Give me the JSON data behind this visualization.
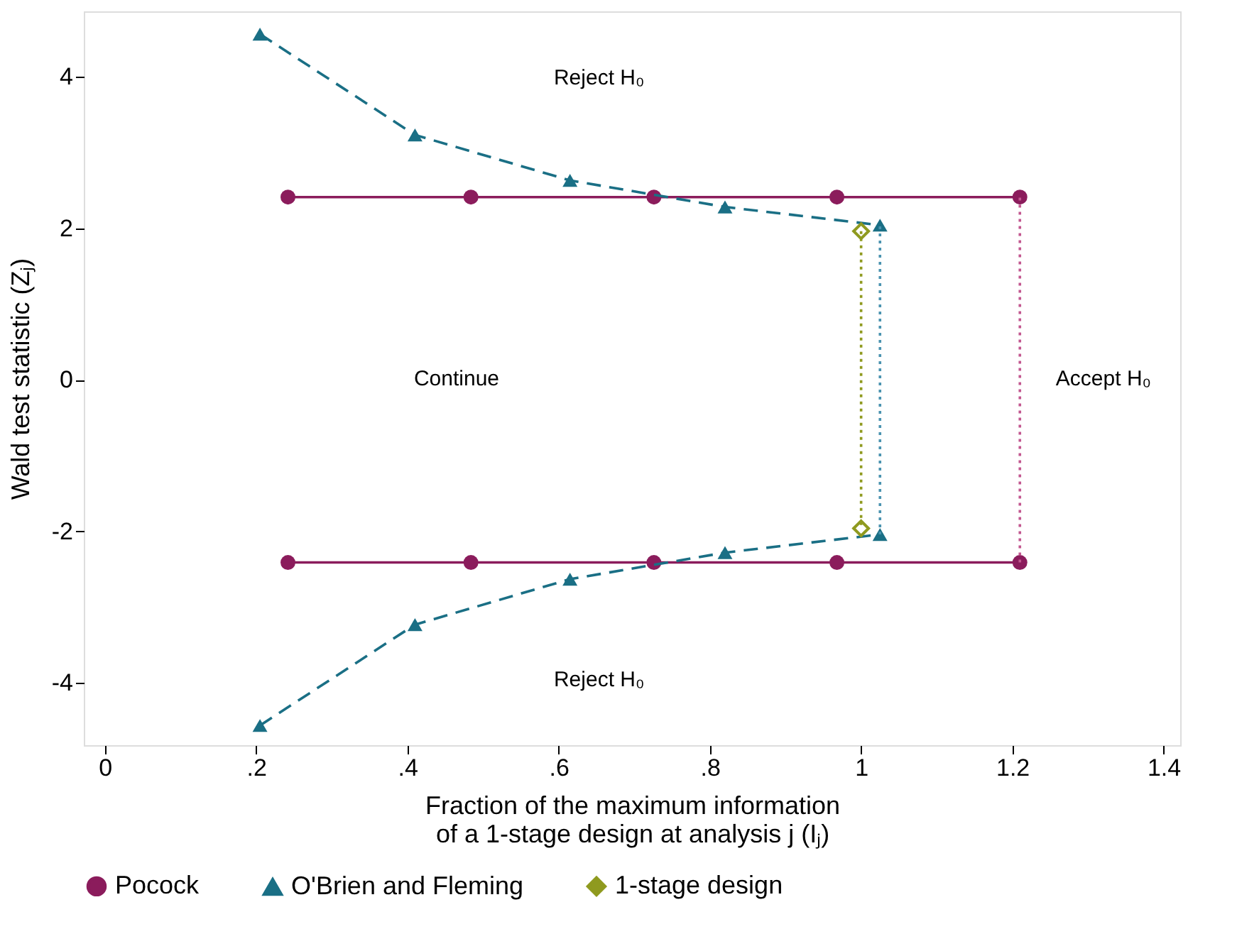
{
  "chart_data": {
    "type": "line",
    "xlabel": "Fraction of the maximum information of a 1-stage design at analysis j (Iⱼ)",
    "ylabel": "Wald test statistic (Zⱼ)",
    "xlim": [
      -0.028,
      1.422
    ],
    "ylim": [
      -4.82,
      4.86
    ],
    "xticks": [
      0,
      {
        "value": 0.2,
        "label": ".2"
      },
      {
        "value": 0.4,
        "label": ".4"
      },
      {
        "value": 0.6,
        "label": ".6"
      },
      {
        "value": 0.8,
        "label": ".8"
      },
      1,
      {
        "value": 1.2,
        "label": "1.2"
      },
      {
        "value": 1.4,
        "label": "1.4"
      }
    ],
    "yticks": [
      -4,
      -2,
      0,
      2,
      4
    ],
    "grid": false,
    "legend": "bottom",
    "series": [
      {
        "name": "Pocock",
        "color": "#8b1c5c",
        "x": [
          0.242,
          0.484,
          0.726,
          0.968,
          1.21
        ],
        "values": [
          2.41,
          2.41,
          2.41,
          2.41,
          2.41
        ],
        "marker": "circle",
        "line_style": "solid"
      },
      {
        "color": "#8b1c5c",
        "x": [
          0.242,
          0.484,
          0.726,
          0.968,
          1.21
        ],
        "values": [
          -2.41,
          -2.41,
          -2.41,
          -2.41,
          -2.41
        ],
        "marker": "circle",
        "line_style": "solid"
      },
      {
        "color": "#c2578f",
        "x": [
          1.21,
          1.21
        ],
        "values": [
          -2.41,
          2.41
        ],
        "marker": "none",
        "line_style": "dotted"
      },
      {
        "name": "O'Brien and Fleming",
        "color": "#1a6f85",
        "x": [
          0.205,
          0.41,
          0.615,
          0.82,
          1.025
        ],
        "values": [
          4.56,
          3.23,
          2.63,
          2.28,
          2.04
        ],
        "marker": "triangle",
        "line_style": "dashed"
      },
      {
        "color": "#1a6f85",
        "x": [
          0.205,
          0.41,
          0.615,
          0.82,
          1.025
        ],
        "values": [
          -4.56,
          -3.23,
          -2.63,
          -2.28,
          -2.04
        ],
        "marker": "triangle",
        "line_style": "dashed"
      },
      {
        "color": "#4a93b0",
        "x": [
          1.025,
          1.025
        ],
        "values": [
          -2.04,
          2.04
        ],
        "marker": "none",
        "line_style": "dotted"
      },
      {
        "name": "1-stage design",
        "color": "#8f9a1f",
        "x": [
          1,
          1
        ],
        "values": [
          1.96,
          -1.96
        ],
        "marker": "diamond",
        "line_style": "dotted"
      }
    ],
    "annotations": [
      "Reject H₀",
      "Continue",
      "Accept H₀",
      "Reject H₀"
    ]
  }
}
